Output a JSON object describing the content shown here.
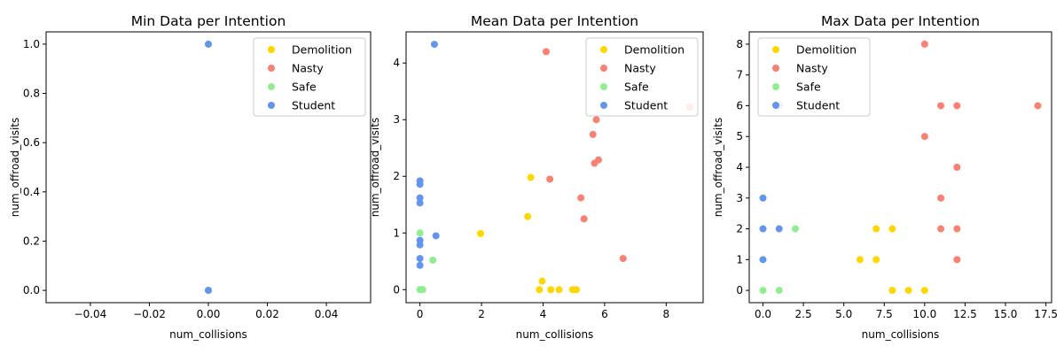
{
  "chart_data": [
    {
      "type": "scatter",
      "title": "Min Data per Intention",
      "xlabel": "num_collisions",
      "ylabel": "num_offroad_visits",
      "xlim": [
        -0.055,
        0.055
      ],
      "ylim": [
        -0.05,
        1.05
      ],
      "xticks": [
        -0.04,
        -0.02,
        0.0,
        0.02,
        0.04
      ],
      "xtick_labels": [
        "−0.04",
        "−0.02",
        "0.00",
        "0.02",
        "0.04"
      ],
      "yticks": [
        0.0,
        0.2,
        0.4,
        0.6,
        0.8,
        1.0
      ],
      "ytick_labels": [
        "0.0",
        "0.2",
        "0.4",
        "0.6",
        "0.8",
        "1.0"
      ],
      "legend_position": "top-right",
      "series": [
        {
          "name": "Demolition",
          "color": "#FFD700",
          "points": [
            [
              0,
              0
            ]
          ]
        },
        {
          "name": "Nasty",
          "color": "#FA8072",
          "points": [
            [
              0,
              0
            ]
          ]
        },
        {
          "name": "Safe",
          "color": "#90EE90",
          "points": [
            [
              0,
              0
            ],
            [
              0,
              1
            ]
          ]
        },
        {
          "name": "Student",
          "color": "#6495ED",
          "points": [
            [
              0,
              0
            ],
            [
              0,
              1
            ]
          ]
        }
      ]
    },
    {
      "type": "scatter",
      "title": "Mean Data per Intention",
      "xlabel": "num_collisions",
      "ylabel": "num_offroad_visits",
      "xlim": [
        -0.45,
        9.2
      ],
      "ylim": [
        -0.23,
        4.55
      ],
      "xticks": [
        0,
        2,
        4,
        6,
        8
      ],
      "xtick_labels": [
        "0",
        "2",
        "4",
        "6",
        "8"
      ],
      "yticks": [
        0,
        1,
        2,
        3,
        4
      ],
      "ytick_labels": [
        "0",
        "1",
        "2",
        "3",
        "4"
      ],
      "legend_position": "top-right",
      "series": [
        {
          "name": "Demolition",
          "color": "#FFD700",
          "points": [
            [
              1.97,
              0.99
            ],
            [
              3.5,
              1.29
            ],
            [
              3.6,
              1.98
            ],
            [
              3.88,
              0.0
            ],
            [
              3.97,
              0.15
            ],
            [
              4.25,
              0.0
            ],
            [
              4.52,
              0.0
            ],
            [
              4.96,
              0.0
            ],
            [
              5.08,
              0.0
            ]
          ]
        },
        {
          "name": "Nasty",
          "color": "#FA8072",
          "points": [
            [
              4.1,
              4.2
            ],
            [
              4.22,
              1.95
            ],
            [
              5.23,
              1.62
            ],
            [
              5.33,
              1.25
            ],
            [
              5.62,
              2.74
            ],
            [
              5.67,
              2.23
            ],
            [
              5.73,
              3.0
            ],
            [
              5.8,
              2.29
            ],
            [
              6.6,
              0.55
            ],
            [
              8.77,
              3.22
            ]
          ]
        },
        {
          "name": "Safe",
          "color": "#90EE90",
          "points": [
            [
              0.0,
              1.0
            ],
            [
              0.42,
              0.52
            ],
            [
              0.0,
              0.0
            ],
            [
              0.05,
              0.0
            ],
            [
              0.09,
              0.0
            ]
          ]
        },
        {
          "name": "Student",
          "color": "#6495ED",
          "points": [
            [
              0.47,
              4.33
            ],
            [
              0.0,
              1.92
            ],
            [
              0.0,
              1.86
            ],
            [
              0.0,
              1.62
            ],
            [
              0.0,
              1.53
            ],
            [
              0.52,
              0.95
            ],
            [
              0.0,
              0.87
            ],
            [
              0.0,
              0.79
            ],
            [
              0.0,
              0.55
            ],
            [
              0.0,
              0.43
            ]
          ]
        }
      ]
    },
    {
      "type": "scatter",
      "title": "Max Data per Intention",
      "xlabel": "num_collisions",
      "ylabel": "num_offroad_visits",
      "xlim": [
        -0.85,
        17.85
      ],
      "ylim": [
        -0.4,
        8.4
      ],
      "xticks": [
        0.0,
        2.5,
        5.0,
        7.5,
        10.0,
        12.5,
        15.0,
        17.5
      ],
      "xtick_labels": [
        "0.0",
        "2.5",
        "5.0",
        "7.5",
        "10.0",
        "12.5",
        "15.0",
        "17.5"
      ],
      "yticks": [
        0,
        1,
        2,
        3,
        4,
        5,
        6,
        7,
        8
      ],
      "ytick_labels": [
        "0",
        "1",
        "2",
        "3",
        "4",
        "5",
        "6",
        "7",
        "8"
      ],
      "legend_position": "top-left",
      "series": [
        {
          "name": "Demolition",
          "color": "#FFD700",
          "points": [
            [
              6,
              1
            ],
            [
              7,
              1
            ],
            [
              7,
              2
            ],
            [
              8,
              2
            ],
            [
              8,
              0
            ],
            [
              9,
              0
            ],
            [
              10,
              0
            ]
          ]
        },
        {
          "name": "Nasty",
          "color": "#FA8072",
          "points": [
            [
              10,
              8
            ],
            [
              10,
              5
            ],
            [
              11,
              6
            ],
            [
              12,
              6
            ],
            [
              12,
              4
            ],
            [
              11,
              3
            ],
            [
              11,
              2
            ],
            [
              12,
              2
            ],
            [
              12,
              1
            ],
            [
              17,
              6
            ]
          ]
        },
        {
          "name": "Safe",
          "color": "#90EE90",
          "points": [
            [
              0,
              0
            ],
            [
              1,
              0
            ],
            [
              2,
              2
            ]
          ]
        },
        {
          "name": "Student",
          "color": "#6495ED",
          "points": [
            [
              0,
              3
            ],
            [
              0,
              2
            ],
            [
              0,
              1
            ],
            [
              1,
              2
            ],
            [
              1,
              6
            ]
          ]
        }
      ]
    }
  ]
}
